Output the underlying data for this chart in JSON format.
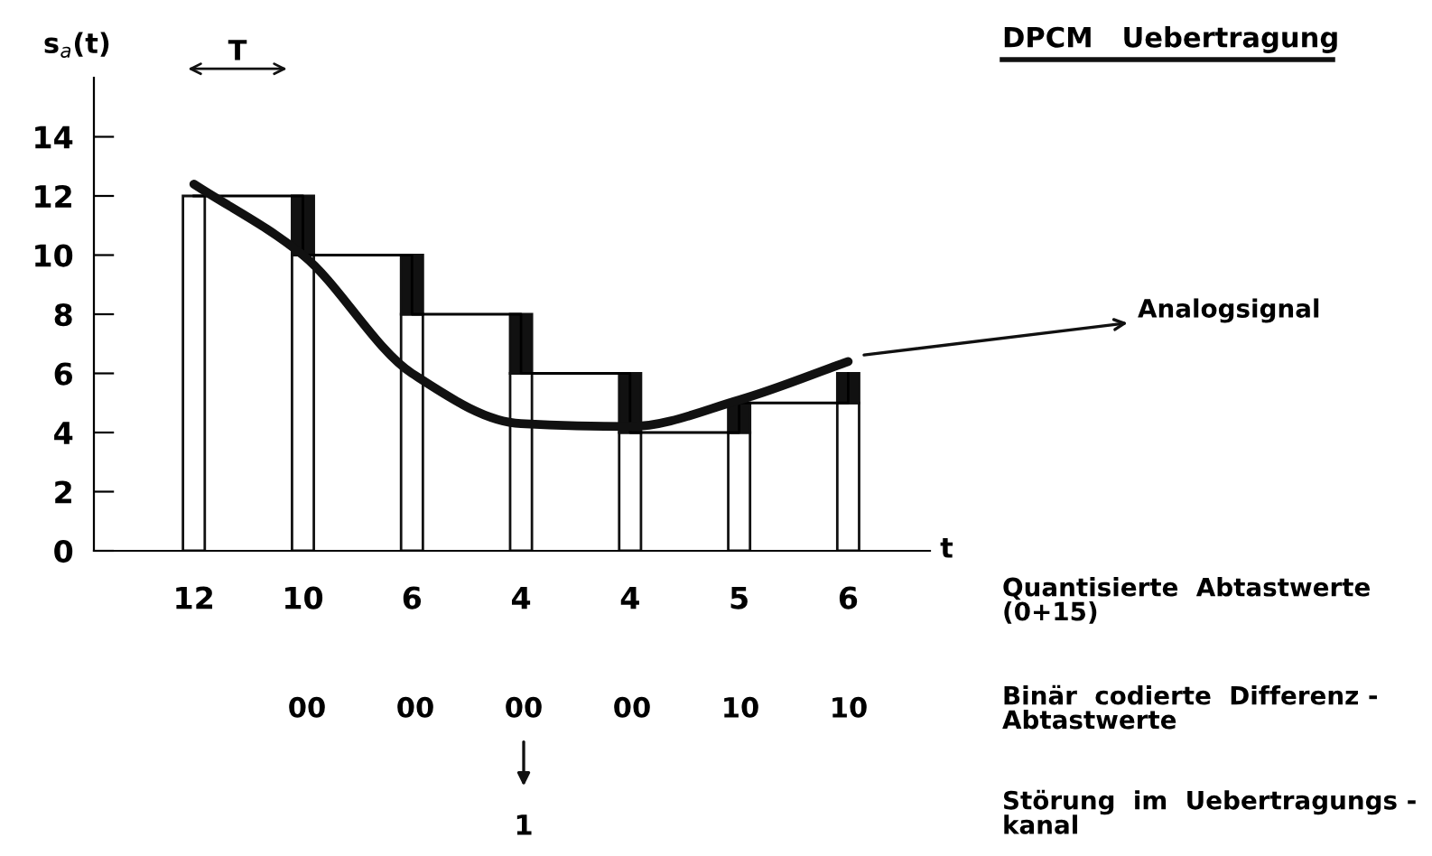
{
  "chart_data": {
    "type": "bar",
    "title": "DPCM   Uebertragung",
    "ylabel": "s$_{a}$(t)",
    "xlabel": "t",
    "categories": [
      "12",
      "10",
      "6",
      "4",
      "4",
      "5",
      "6"
    ],
    "ylim": [
      0,
      16
    ],
    "yticks": [
      0,
      2,
      4,
      6,
      8,
      10,
      12,
      14
    ],
    "grid": false,
    "legend": "right",
    "stacked": true,
    "series": [
      {
        "color": "#ffffff",
        "values": [
          12,
          10,
          8,
          6,
          4,
          4,
          5
        ]
      },
      {
        "color": "#111111",
        "values": [
          null,
          2,
          2,
          2,
          2,
          1,
          1
        ]
      },
      {
        "type": "step",
        "color": "#000000",
        "values": [
          12,
          10,
          8,
          6,
          4,
          5,
          6
        ]
      },
      {
        "type": "line",
        "name": "Analogsignal",
        "color": "#111111",
        "values": [
          12.4,
          10,
          6,
          4.3,
          4.2,
          5.1,
          6.4
        ]
      }
    ],
    "annotations": [
      "T",
      "00",
      "00",
      "00",
      "00",
      "10",
      "10",
      "1",
      "Quantisierte  Abtastwerte\n(0+15)",
      "Binär  codierte  Differenz -\nAbtastwerte",
      "Störung  im  Uebertragungs -\nkanal"
    ]
  }
}
